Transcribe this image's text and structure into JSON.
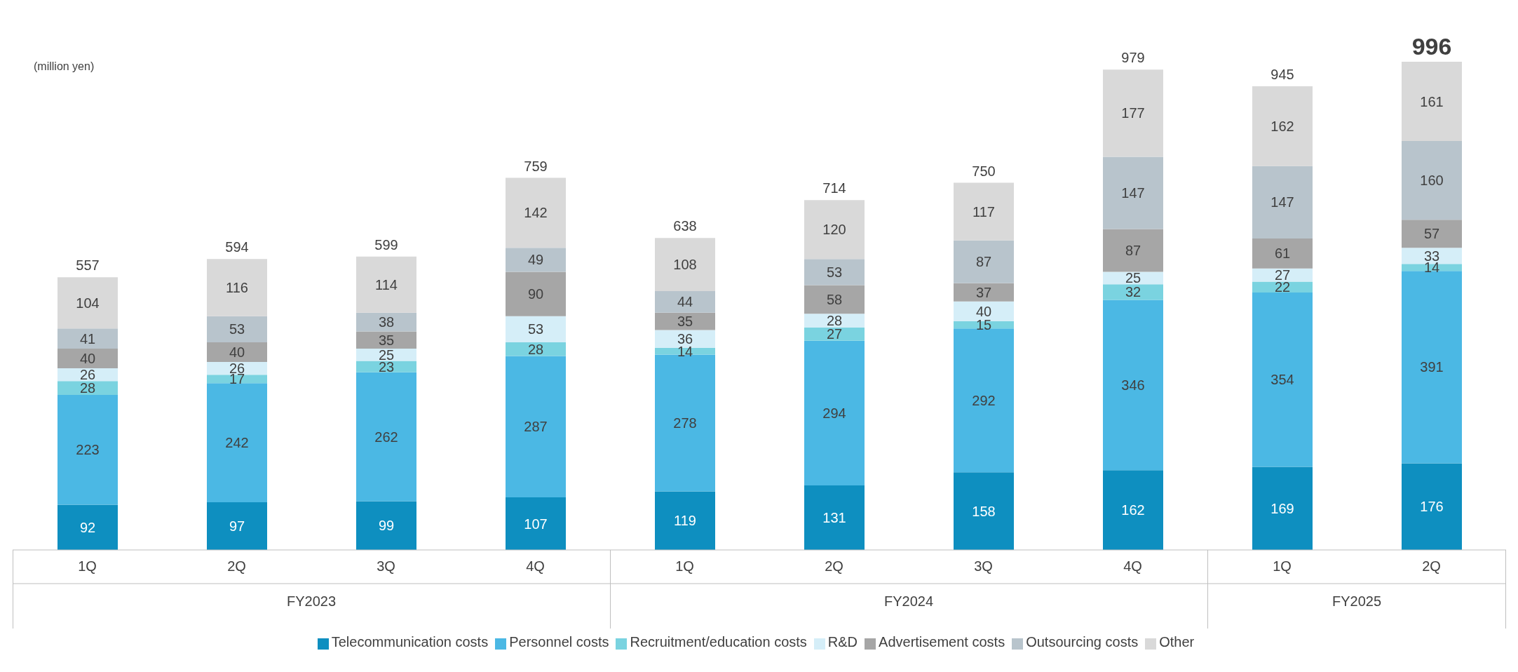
{
  "chart_data": {
    "type": "bar",
    "stacked": true,
    "categories": [
      "1Q",
      "2Q",
      "3Q",
      "4Q",
      "1Q",
      "2Q",
      "3Q",
      "4Q",
      "1Q",
      "2Q"
    ],
    "series": [
      {
        "name": "Telecommunication costs",
        "color": "#0e8fc0",
        "values": [
          92,
          97,
          99,
          107,
          119,
          131,
          158,
          162,
          169,
          176
        ]
      },
      {
        "name": "Personnel costs",
        "color": "#4bb8e4",
        "values": [
          223,
          242,
          262,
          287,
          278,
          294,
          292,
          346,
          354,
          391
        ]
      },
      {
        "name": "Recruitment/education costs",
        "color": "#7ad3e0",
        "values": [
          28,
          17,
          23,
          28,
          14,
          27,
          15,
          32,
          22,
          14
        ]
      },
      {
        "name": "R&D",
        "color": "#d5eef8",
        "values": [
          26,
          26,
          25,
          53,
          36,
          28,
          40,
          25,
          27,
          33
        ]
      },
      {
        "name": "Advertisement costs",
        "color": "#a6a6a6",
        "values": [
          40,
          40,
          35,
          90,
          35,
          58,
          37,
          87,
          61,
          57
        ]
      },
      {
        "name": "Outsourcing costs",
        "color": "#b8c4cc",
        "values": [
          41,
          53,
          38,
          49,
          44,
          53,
          87,
          147,
          147,
          160
        ]
      },
      {
        "name": "Other",
        "color": "#d9d9d9",
        "values": [
          104,
          116,
          114,
          142,
          108,
          120,
          117,
          177,
          162,
          161
        ]
      }
    ],
    "totals": [
      "557",
      "594",
      "599",
      "759",
      "638",
      "714",
      "750",
      "979",
      "945",
      "996"
    ],
    "data_labels": true,
    "legend": "bottom",
    "tick_labels": "x",
    "annotations": [
      "(million yen)",
      "FY2023",
      "FY2024",
      "FY2025"
    ]
  }
}
